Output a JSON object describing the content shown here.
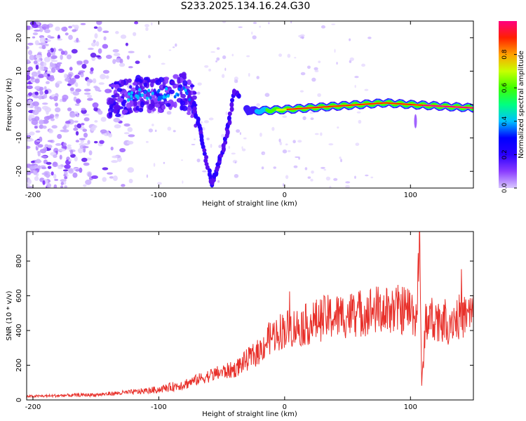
{
  "title": "S233.2025.134.16.24.G30",
  "colors": {
    "line": "#e8302a",
    "axis": "#000000",
    "colorbar": [
      "#d9c8ff",
      "#8a3cff",
      "#2a00ff",
      "#0000ff",
      "#00c0ff",
      "#00ff80",
      "#40ff00",
      "#c8ff00",
      "#ffa000",
      "#ff2000",
      "#ff0080"
    ]
  },
  "chart_data": [
    {
      "type": "heatmap",
      "title": "S233.2025.134.16.24.G30",
      "xlabel": "Height of straight line (km)",
      "ylabel": "Frequency (Hz)",
      "xlim": [
        -205,
        150
      ],
      "ylim": [
        -25,
        25
      ],
      "x_ticks": [
        "-200",
        "-100",
        "0",
        "100"
      ],
      "y_ticks": [
        "-20",
        "-10",
        "0",
        "10",
        "20"
      ],
      "colorbar": {
        "label": "Normalized spectral amplitude",
        "range": [
          0,
          1
        ],
        "ticks": [
          "0.0",
          "0.2",
          "0.4",
          "0.6",
          "0.8"
        ]
      },
      "ridge": [
        {
          "x": -140,
          "y": 1
        },
        {
          "x": -120,
          "y": 3
        },
        {
          "x": -100,
          "y": 3
        },
        {
          "x": -80,
          "y": 4
        },
        {
          "x": -72,
          "y": 0
        },
        {
          "x": -65,
          "y": -12
        },
        {
          "x": -58,
          "y": -24
        },
        {
          "x": -50,
          "y": -15
        },
        {
          "x": -44,
          "y": -5
        },
        {
          "x": -40,
          "y": 4
        },
        {
          "x": -35,
          "y": 2
        },
        {
          "x": -28,
          "y": -2
        },
        {
          "x": 0,
          "y": -1.5
        },
        {
          "x": 40,
          "y": -0.5
        },
        {
          "x": 80,
          "y": 0.5
        },
        {
          "x": 100,
          "y": 0
        },
        {
          "x": 150,
          "y": -1
        }
      ]
    },
    {
      "type": "line",
      "xlabel": "Height of straight line (km)",
      "ylabel": "SNR (10 * v/v)",
      "xlim": [
        -205,
        150
      ],
      "ylim": [
        0,
        970
      ],
      "x_ticks": [
        "-200",
        "-100",
        "0",
        "100"
      ],
      "y_ticks": [
        "0",
        "200",
        "400",
        "600",
        "800"
      ],
      "series": [
        {
          "x": [
            -205,
            -180,
            -150,
            -120,
            -100,
            -80,
            -60,
            -50,
            -40,
            -30,
            -20,
            -15,
            -10,
            0,
            10,
            20,
            30,
            40,
            50,
            60,
            70,
            80,
            90,
            100,
            105,
            107,
            109,
            112,
            120,
            130,
            140,
            150
          ],
          "y": [
            20,
            25,
            30,
            45,
            60,
            90,
            140,
            160,
            175,
            230,
            280,
            330,
            370,
            410,
            420,
            440,
            470,
            480,
            490,
            500,
            520,
            510,
            520,
            520,
            480,
            960,
            80,
            460,
            470,
            460,
            480,
            490
          ]
        }
      ]
    }
  ]
}
